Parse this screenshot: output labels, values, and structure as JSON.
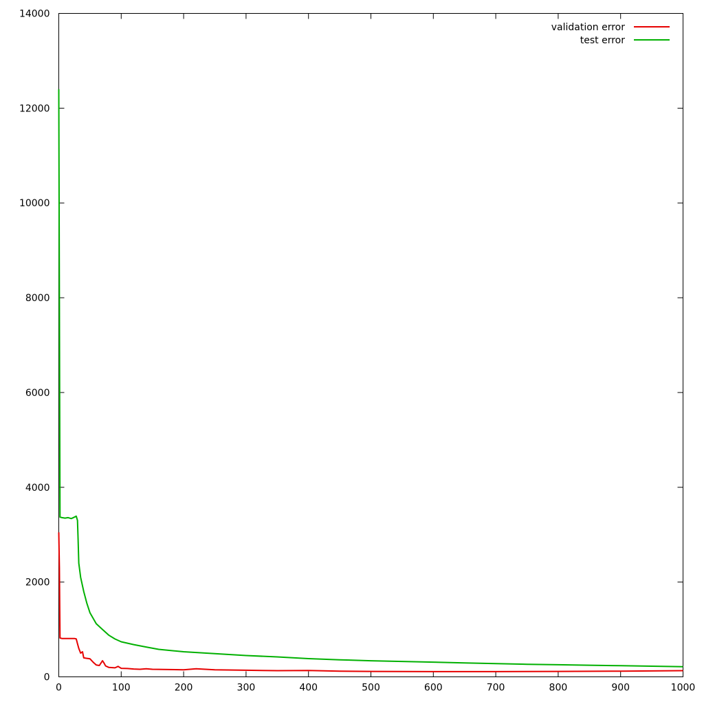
{
  "chart_data": {
    "type": "line",
    "title": "",
    "xlabel": "",
    "ylabel": "",
    "xlim": [
      0,
      1000
    ],
    "ylim": [
      0,
      14000
    ],
    "x_ticks": [
      "0",
      "100",
      "200",
      "300",
      "400",
      "500",
      "600",
      "700",
      "800",
      "900",
      "1000"
    ],
    "y_ticks": [
      "0",
      "2000",
      "4000",
      "6000",
      "8000",
      "10000",
      "12000",
      "14000"
    ],
    "grid": false,
    "legend_position": "top-right",
    "series": [
      {
        "name": "validation error",
        "color": "#e60000",
        "points": [
          [
            0,
            3050
          ],
          [
            1,
            2300
          ],
          [
            2,
            820
          ],
          [
            5,
            810
          ],
          [
            10,
            810
          ],
          [
            15,
            810
          ],
          [
            20,
            810
          ],
          [
            25,
            810
          ],
          [
            28,
            800
          ],
          [
            30,
            700
          ],
          [
            32,
            600
          ],
          [
            35,
            500
          ],
          [
            38,
            530
          ],
          [
            40,
            400
          ],
          [
            45,
            390
          ],
          [
            50,
            380
          ],
          [
            55,
            310
          ],
          [
            60,
            250
          ],
          [
            65,
            240
          ],
          [
            70,
            340
          ],
          [
            72,
            300
          ],
          [
            75,
            230
          ],
          [
            80,
            200
          ],
          [
            90,
            190
          ],
          [
            95,
            220
          ],
          [
            100,
            180
          ],
          [
            110,
            175
          ],
          [
            120,
            165
          ],
          [
            130,
            160
          ],
          [
            140,
            170
          ],
          [
            150,
            160
          ],
          [
            200,
            150
          ],
          [
            220,
            170
          ],
          [
            250,
            150
          ],
          [
            300,
            140
          ],
          [
            350,
            130
          ],
          [
            400,
            135
          ],
          [
            450,
            120
          ],
          [
            500,
            115
          ],
          [
            600,
            110
          ],
          [
            700,
            110
          ],
          [
            800,
            115
          ],
          [
            900,
            120
          ],
          [
            1000,
            130
          ]
        ]
      },
      {
        "name": "test error",
        "color": "#00b000",
        "points": [
          [
            0,
            12400
          ],
          [
            1,
            7900
          ],
          [
            2,
            3370
          ],
          [
            5,
            3360
          ],
          [
            10,
            3350
          ],
          [
            15,
            3360
          ],
          [
            20,
            3340
          ],
          [
            25,
            3370
          ],
          [
            28,
            3390
          ],
          [
            30,
            3300
          ],
          [
            31,
            2900
          ],
          [
            32,
            2400
          ],
          [
            35,
            2100
          ],
          [
            40,
            1800
          ],
          [
            45,
            1550
          ],
          [
            50,
            1350
          ],
          [
            60,
            1120
          ],
          [
            70,
            1000
          ],
          [
            80,
            880
          ],
          [
            90,
            800
          ],
          [
            100,
            740
          ],
          [
            120,
            680
          ],
          [
            140,
            630
          ],
          [
            160,
            580
          ],
          [
            200,
            530
          ],
          [
            250,
            490
          ],
          [
            300,
            450
          ],
          [
            350,
            420
          ],
          [
            400,
            385
          ],
          [
            450,
            360
          ],
          [
            500,
            340
          ],
          [
            550,
            325
          ],
          [
            600,
            310
          ],
          [
            650,
            295
          ],
          [
            700,
            280
          ],
          [
            750,
            265
          ],
          [
            800,
            255
          ],
          [
            850,
            245
          ],
          [
            900,
            235
          ],
          [
            950,
            225
          ],
          [
            1000,
            215
          ]
        ]
      }
    ]
  }
}
